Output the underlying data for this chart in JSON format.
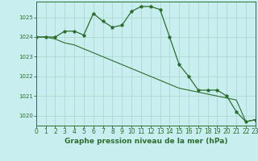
{
  "title": "Graphe pression niveau de la mer (hPa)",
  "background_color": "#c8eef0",
  "grid_color": "#b0d8d0",
  "line_color": "#2d6e2d",
  "xlim": [
    0,
    23
  ],
  "ylim": [
    1019.5,
    1025.8
  ],
  "yticks": [
    1020,
    1021,
    1022,
    1023,
    1024,
    1025
  ],
  "xticks": [
    0,
    1,
    2,
    3,
    4,
    5,
    6,
    7,
    8,
    9,
    10,
    11,
    12,
    13,
    14,
    15,
    16,
    17,
    18,
    19,
    20,
    21,
    22,
    23
  ],
  "series1_y": [
    1024.0,
    1024.0,
    1024.0,
    1024.3,
    1024.3,
    1024.1,
    1025.2,
    1024.8,
    1024.5,
    1024.6,
    1025.3,
    1025.55,
    1025.55,
    1025.4,
    1024.0,
    1022.6,
    1022.0,
    1021.3,
    1021.3,
    1021.3,
    1021.0,
    1020.2,
    1019.7,
    1019.8
  ],
  "series2_y": [
    1024.0,
    1024.0,
    1023.9,
    1023.7,
    1023.6,
    1023.4,
    1023.2,
    1023.0,
    1022.8,
    1022.6,
    1022.4,
    1022.2,
    1022.0,
    1021.8,
    1021.6,
    1021.4,
    1021.3,
    1021.2,
    1021.1,
    1021.0,
    1020.9,
    1020.8,
    1019.7,
    1019.8
  ],
  "ylabel_fontsize": 5.0,
  "xlabel_fontsize": 5.5,
  "title_fontsize": 6.5
}
